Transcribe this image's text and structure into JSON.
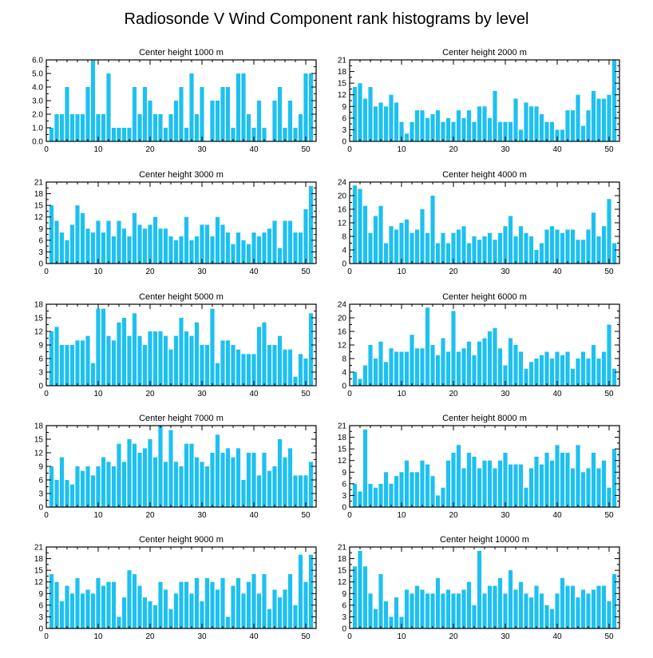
{
  "figure": {
    "title": "Radiosonde V Wind Component rank histograms by level",
    "bar_color": "#1ec0f0",
    "axis_color": "#000000"
  },
  "chart_data": [
    {
      "type": "bar",
      "title": "Center height 1000 m",
      "xlim": [
        0,
        52
      ],
      "xticks": [
        0,
        10,
        20,
        30,
        40,
        50
      ],
      "ylim": [
        0,
        6
      ],
      "yticks": [
        0,
        1,
        2,
        3,
        4,
        5,
        6
      ],
      "ytick_labels": [
        "0.0",
        "1.0",
        "2.0",
        "3.0",
        "4.0",
        "5.0",
        "6.0"
      ],
      "values": [
        1,
        2,
        2,
        4,
        2,
        2,
        2,
        4,
        6,
        2,
        2,
        5,
        1,
        1,
        1,
        1,
        4,
        2,
        4,
        3,
        2,
        2,
        1,
        2,
        3,
        4,
        1,
        5,
        2,
        4,
        0,
        3,
        3,
        4,
        4,
        1,
        5,
        5,
        2,
        1,
        3,
        1,
        0,
        3,
        4,
        1,
        3,
        1,
        2,
        5,
        5
      ]
    },
    {
      "type": "bar",
      "title": "Center height 2000 m",
      "xlim": [
        0,
        52
      ],
      "xticks": [
        0,
        10,
        20,
        30,
        40,
        50
      ],
      "ylim": [
        0,
        21
      ],
      "yticks": [
        0,
        3,
        6,
        9,
        12,
        15,
        18,
        21
      ],
      "ytick_labels": [
        "0",
        "3",
        "6",
        "9",
        "12",
        "15",
        "18",
        "21"
      ],
      "values": [
        14,
        15,
        11,
        14,
        9,
        10,
        9,
        12,
        10,
        5,
        2,
        5,
        8,
        8,
        6,
        7,
        8,
        5,
        6,
        5,
        8,
        6,
        8,
        5,
        9,
        9,
        6,
        13,
        5,
        5,
        5,
        11,
        3,
        10,
        9,
        9,
        7,
        5,
        5,
        3,
        3,
        8,
        8,
        12,
        4,
        8,
        13,
        11,
        11,
        12,
        21
      ]
    },
    {
      "type": "bar",
      "title": "Center height 3000 m",
      "xlim": [
        0,
        52
      ],
      "xticks": [
        0,
        10,
        20,
        30,
        40,
        50
      ],
      "ylim": [
        0,
        21
      ],
      "yticks": [
        0,
        3,
        6,
        9,
        12,
        15,
        18,
        21
      ],
      "ytick_labels": [
        "0",
        "3",
        "6",
        "9",
        "12",
        "15",
        "18",
        "21"
      ],
      "values": [
        15,
        11,
        8,
        6,
        10,
        15,
        13,
        9,
        8,
        11,
        8,
        11,
        7,
        11,
        9,
        7,
        13,
        10,
        9,
        10,
        12,
        9,
        9,
        7,
        6,
        7,
        12,
        6,
        7,
        10,
        10,
        7,
        12,
        10,
        8,
        5,
        8,
        6,
        5,
        8,
        7,
        8,
        9,
        11,
        4,
        11,
        11,
        8,
        8,
        14,
        20
      ]
    },
    {
      "type": "bar",
      "title": "Center height 4000 m",
      "xlim": [
        0,
        52
      ],
      "xticks": [
        0,
        10,
        20,
        30,
        40,
        50
      ],
      "ylim": [
        0,
        24
      ],
      "yticks": [
        0,
        4,
        8,
        12,
        16,
        20,
        24
      ],
      "ytick_labels": [
        "0",
        "4",
        "8",
        "12",
        "16",
        "20",
        "24"
      ],
      "values": [
        23,
        22,
        17,
        9,
        14,
        17,
        6,
        11,
        10,
        12,
        13,
        9,
        10,
        16,
        9,
        20,
        6,
        9,
        6,
        9,
        10,
        11,
        6,
        8,
        7,
        8,
        9,
        7,
        9,
        11,
        14,
        8,
        11,
        9,
        8,
        4,
        6,
        10,
        11,
        10,
        9,
        10,
        10,
        7,
        7,
        10,
        15,
        8,
        11,
        19,
        6
      ]
    },
    {
      "type": "bar",
      "title": "Center height 5000 m",
      "xlim": [
        0,
        52
      ],
      "xticks": [
        0,
        10,
        20,
        30,
        40,
        50
      ],
      "ylim": [
        0,
        18
      ],
      "yticks": [
        0,
        3,
        6,
        9,
        12,
        15,
        18
      ],
      "ytick_labels": [
        "0",
        "3",
        "6",
        "9",
        "12",
        "15",
        "18"
      ],
      "values": [
        12,
        13,
        9,
        9,
        9,
        10,
        10,
        11,
        5,
        17,
        17,
        11,
        10,
        14,
        15,
        11,
        16,
        11,
        9,
        12,
        12,
        12,
        11,
        8,
        11,
        15,
        12,
        11,
        14,
        9,
        9,
        17,
        5,
        10,
        10,
        9,
        8,
        7,
        7,
        7,
        13,
        14,
        9,
        9,
        11,
        8,
        8,
        2,
        7,
        6,
        16
      ]
    },
    {
      "type": "bar",
      "title": "Center height 6000 m",
      "xlim": [
        0,
        52
      ],
      "xticks": [
        0,
        10,
        20,
        30,
        40,
        50
      ],
      "ylim": [
        0,
        24
      ],
      "yticks": [
        0,
        4,
        8,
        12,
        16,
        20,
        24
      ],
      "ytick_labels": [
        "0",
        "4",
        "8",
        "12",
        "16",
        "20",
        "24"
      ],
      "values": [
        4,
        2,
        6,
        12,
        8,
        13,
        7,
        11,
        10,
        10,
        10,
        15,
        11,
        11,
        23,
        12,
        9,
        14,
        10,
        22,
        10,
        11,
        13,
        9,
        13,
        14,
        16,
        17,
        11,
        6,
        14,
        12,
        10,
        5,
        7,
        8,
        9,
        10,
        8,
        10,
        9,
        10,
        5,
        8,
        10,
        8,
        12,
        8,
        10,
        18,
        5
      ]
    },
    {
      "type": "bar",
      "title": "Center height 7000 m",
      "xlim": [
        0,
        52
      ],
      "xticks": [
        0,
        10,
        20,
        30,
        40,
        50
      ],
      "ylim": [
        0,
        18
      ],
      "yticks": [
        0,
        3,
        6,
        9,
        12,
        15,
        18
      ],
      "ytick_labels": [
        "0",
        "3",
        "6",
        "9",
        "12",
        "15",
        "18"
      ],
      "values": [
        9,
        6,
        11,
        6,
        5,
        9,
        8,
        9,
        7,
        9,
        11,
        10,
        9,
        14,
        10,
        15,
        14,
        12,
        13,
        15,
        11,
        18,
        10,
        17,
        10,
        9,
        14,
        14,
        11,
        10,
        9,
        12,
        16,
        12,
        13,
        11,
        13,
        6,
        12,
        12,
        7,
        12,
        8,
        9,
        15,
        11,
        13,
        7,
        7,
        7,
        10
      ]
    },
    {
      "type": "bar",
      "title": "Center height 8000 m",
      "xlim": [
        0,
        52
      ],
      "xticks": [
        0,
        10,
        20,
        30,
        40,
        50
      ],
      "ylim": [
        0,
        21
      ],
      "yticks": [
        0,
        3,
        6,
        9,
        12,
        15,
        18,
        21
      ],
      "ytick_labels": [
        "0",
        "3",
        "6",
        "9",
        "12",
        "15",
        "18",
        "21"
      ],
      "values": [
        6,
        4,
        20,
        6,
        5,
        6,
        9,
        6,
        8,
        9,
        12,
        9,
        9,
        12,
        11,
        8,
        3,
        5,
        12,
        14,
        16,
        10,
        14,
        13,
        10,
        12,
        12,
        10,
        12,
        14,
        11,
        11,
        11,
        5,
        10,
        13,
        11,
        14,
        12,
        16,
        14,
        14,
        10,
        16,
        9,
        10,
        14,
        10,
        12,
        5,
        15
      ]
    },
    {
      "type": "bar",
      "title": "Center height 9000 m",
      "xlim": [
        0,
        52
      ],
      "xticks": [
        0,
        10,
        20,
        30,
        40,
        50
      ],
      "ylim": [
        0,
        21
      ],
      "yticks": [
        0,
        3,
        6,
        9,
        12,
        15,
        18,
        21
      ],
      "ytick_labels": [
        "0",
        "3",
        "6",
        "9",
        "12",
        "15",
        "18",
        "21"
      ],
      "values": [
        14,
        12,
        7,
        11,
        9,
        13,
        9,
        10,
        9,
        13,
        11,
        12,
        12,
        3,
        8,
        15,
        14,
        11,
        8,
        7,
        6,
        12,
        10,
        5,
        9,
        12,
        12,
        9,
        13,
        7,
        13,
        12,
        10,
        13,
        3,
        11,
        13,
        9,
        12,
        14,
        9,
        14,
        5,
        10,
        8,
        10,
        14,
        6,
        19,
        12,
        19
      ]
    },
    {
      "type": "bar",
      "title": "Center height 10000 m",
      "xlim": [
        0,
        52
      ],
      "xticks": [
        0,
        10,
        20,
        30,
        40,
        50
      ],
      "ylim": [
        0,
        21
      ],
      "yticks": [
        0,
        3,
        6,
        9,
        12,
        15,
        18,
        21
      ],
      "ytick_labels": [
        "0",
        "3",
        "6",
        "9",
        "12",
        "15",
        "18",
        "21"
      ],
      "values": [
        16,
        20,
        16,
        9,
        5,
        14,
        7,
        3,
        8,
        3,
        10,
        9,
        11,
        10,
        9,
        9,
        13,
        9,
        10,
        9,
        9,
        10,
        12,
        6,
        20,
        9,
        11,
        11,
        13,
        9,
        15,
        10,
        12,
        9,
        8,
        11,
        9,
        6,
        5,
        9,
        13,
        11,
        11,
        8,
        10,
        9,
        10,
        11,
        11,
        7,
        14
      ]
    }
  ]
}
